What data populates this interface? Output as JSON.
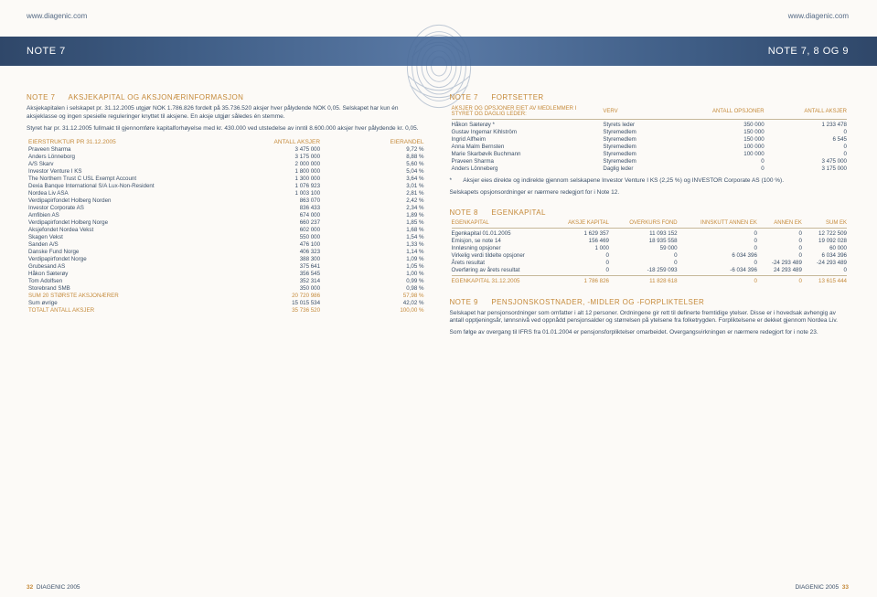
{
  "url": "www.diagenic.com",
  "band": {
    "left": "NOTE 7",
    "right": "NOTE 7, 8 OG 9"
  },
  "note7": {
    "title_num": "NOTE 7",
    "title_txt": "AKSJEKAPITAL OG AKSJONÆRINFORMASJON",
    "p1": "Aksjekapitalen i selskapet pr. 31.12.2005 utgjør NOK 1.786.826 fordelt på 35.736.520 aksjer hver pålydende NOK 0,05. Selskapet har kun én aksjeklasse og ingen spesielle reguleringer knyttet til aksjene. En aksje utgjør således én stemme.",
    "p2": "Styret har pr. 31.12.2005 fullmakt til gjennomføre kapitalforhøyelse med kr. 430.000 ved utstedelse av inntil 8.600.000 aksjer hver pålydende kr. 0,05.",
    "tbl_head": {
      "c1": "EIERSTRUKTUR PR 31.12.2005",
      "c2": "ANTALL AKSJER",
      "c3": "EIERANDEL"
    },
    "rows": [
      [
        "Praveen Sharma",
        "3 475 000",
        "9,72 %"
      ],
      [
        "Anders Lönneborg",
        "3 175 000",
        "8,88 %"
      ],
      [
        "A/S Skarv",
        "2 000 000",
        "5,60 %"
      ],
      [
        "Investor Venture I KS",
        "1 800 000",
        "5,04 %"
      ],
      [
        "The Northern Trust C USL Exempt Account",
        "1 300 000",
        "3,64 %"
      ],
      [
        "Dexia Banque International S/A Lux-Non-Resident",
        "1 076 923",
        "3,01 %"
      ],
      [
        "Nordea Liv ASA",
        "1 003 100",
        "2,81 %"
      ],
      [
        "Verdipapirfondet Holberg Norden",
        "863 070",
        "2,42 %"
      ],
      [
        "Investor Corporate AS",
        "836 433",
        "2,34 %"
      ],
      [
        "Amfibien AS",
        "674 000",
        "1,89 %"
      ],
      [
        "Verdipapirfondet Holberg Norge",
        "660 237",
        "1,85 %"
      ],
      [
        "Aksjefondet Nordea Vekst",
        "602 000",
        "1,68 %"
      ],
      [
        "Skagen Vekst",
        "550 000",
        "1,54 %"
      ],
      [
        "Sanden A/S",
        "476 100",
        "1,33 %"
      ],
      [
        "Danske Fund Norge",
        "406 323",
        "1,14 %"
      ],
      [
        "Verdipapirfondet Norge",
        "388 300",
        "1,09 %"
      ],
      [
        "Grubesand AS",
        "375 641",
        "1,05 %"
      ],
      [
        "Håkon Sæterøy",
        "356 545",
        "1,00 %"
      ],
      [
        "Tom Adolfsen",
        "352 314",
        "0,99 %"
      ],
      [
        "Storebrand SMB",
        "350 000",
        "0,98 %"
      ]
    ],
    "sum20": [
      "SUM 20 STØRSTE AKSJONÆRER",
      "20 720 986",
      "57,98 %"
    ],
    "sumoth": [
      "Sum øvrige",
      "15 015 534",
      "42,02 %"
    ],
    "total": [
      "TOTALT ANTALL AKSJER",
      "35 736 520",
      "100,00 %"
    ]
  },
  "note7b": {
    "title_num": "NOTE 7",
    "title_txt": "FORTSETTER",
    "hdr": [
      "AKSJER OG OPSJONER EIET AV MEDLEMMER I STYRET OG DAGLIG LEDER:",
      "VERV",
      "ANTALL OPSJONER",
      "ANTALL AKSJER"
    ],
    "rows": [
      [
        "Håkon Sæterøy *",
        "Styrets leder",
        "350 000",
        "1 233 478"
      ],
      [
        "Gustav Ingemar Kihlström",
        "Styremedlem",
        "150 000",
        "0"
      ],
      [
        "Ingrid Alfheim",
        "Styremedlem",
        "150 000",
        "6 545"
      ],
      [
        "Anna Malm Bernsten",
        "Styremedlem",
        "100 000",
        "0"
      ],
      [
        "Marie Skarbøvik Buchmann",
        "Styremedlem",
        "100 000",
        "0"
      ],
      [
        "Praveen Sharma",
        "Styremedlem",
        "0",
        "3 475 000"
      ],
      [
        "Anders Lönneberg",
        "Daglig leder",
        "0",
        "3 175 000"
      ]
    ],
    "star": "*       Aksjer eies direkte og indirekte gjennom selskapene Investor Venture I KS (2,25 %) og INVESTOR Corporate AS (100 %).",
    "p2": "Selskapets opsjonsordninger er nærmere redegjort for i Note 12."
  },
  "note8": {
    "title_num": "NOTE 8",
    "title_txt": "EGENKAPITAL",
    "cols": [
      "EGENKAPITAL",
      "AKSJE KAPITAL",
      "OVERKURS FOND",
      "INNSKUTT ANNEN EK",
      "ANNEN EK",
      "SUM EK"
    ],
    "rows": [
      [
        "Egenkapital 01.01.2005",
        "1 629 357",
        "11 093 152",
        "0",
        "0",
        "12 722 509"
      ],
      [
        "Emisjon, se note 14",
        "156 469",
        "18 935 558",
        "0",
        "0",
        "19 092 028"
      ],
      [
        "Innløsning opsjoner",
        "1 000",
        "59 000",
        "0",
        "0",
        "60 000"
      ],
      [
        "Virkelig verdi tildelte opsjoner",
        "0",
        "0",
        "6 034 396",
        "0",
        "6 034 396"
      ],
      [
        "Årets resultat",
        "0",
        "0",
        "0",
        "-24 293 489",
        "-24 293 489"
      ],
      [
        "Overføring av årets resultat",
        "0",
        "-18 259 093",
        "-6 034 396",
        "24 293 489",
        "0"
      ]
    ],
    "total": [
      "EGENKAPITAL 31.12.2005",
      "1 786 826",
      "11 828 618",
      "0",
      "0",
      "13 615 444"
    ]
  },
  "note9": {
    "title_num": "NOTE 9",
    "title_txt": "PENSJONSKOSTNADER, -MIDLER OG -FORPLIKTELSER",
    "p1": "Selskapet har pensjonsordninger som omfatter i alt 12 personer. Ordningene gir rett til definerte fremtidige ytelser. Disse er i hovedsak avhengig av antall opptjeningsår, lønnsnivå ved oppnådd pensjonsalder og størrelsen på ytelsene fra folketrygden. Forpliktelsene er dekket gjennom Nordea Liv.",
    "p2": "Som følge av overgang til IFRS fra 01.01.2004 er pensjonsforpliktelser omarbeidet. Overgangsvirkningen er nærmere redegjort for i note 23."
  },
  "footer": {
    "brand": "DIAGENIC 2005",
    "pl": "32",
    "pr": "33"
  }
}
